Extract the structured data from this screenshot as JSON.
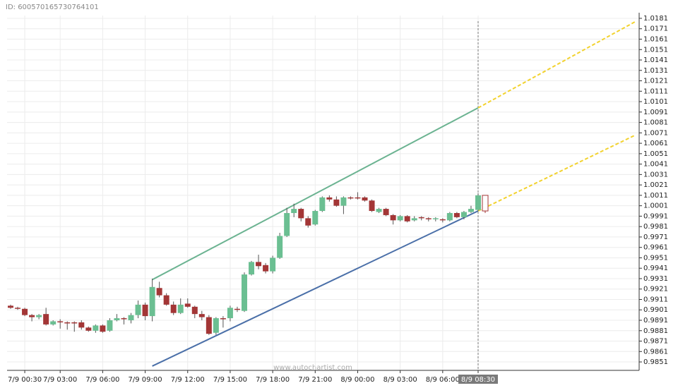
{
  "id_label": "ID: 600570165730764101",
  "watermark": "www.autochartist.com",
  "chart_data": {
    "type": "candlestick",
    "categories": [
      null,
      null,
      "7/9 00:30",
      null,
      null,
      null,
      null,
      "7/9 03:00",
      null,
      null,
      null,
      null,
      null,
      "7/9 06:00",
      null,
      null,
      null,
      null,
      null,
      "7/9 09:00",
      null,
      null,
      null,
      null,
      null,
      "7/9 12:00",
      null,
      null,
      null,
      null,
      null,
      "7/9 15:00",
      null,
      null,
      null,
      null,
      null,
      "7/9 18:00",
      null,
      null,
      null,
      null,
      null,
      "7/9 21:00",
      null,
      null,
      null,
      null,
      null,
      "8/9 00:00",
      null,
      null,
      null,
      null,
      null,
      "8/9 03:00",
      null,
      null,
      null,
      null,
      null,
      "8/9 06:00",
      null,
      null,
      null,
      null,
      "8/9 08:30",
      null
    ],
    "open": [
      0.9905,
      0.9903,
      0.9902,
      0.9896,
      0.9894,
      0.9897,
      0.9887,
      0.989,
      0.9889,
      0.9889,
      0.9889,
      0.9884,
      0.9881,
      0.9886,
      0.9881,
      0.9891,
      0.9893,
      0.9891,
      0.9896,
      0.9906,
      0.9895,
      0.9922,
      0.9915,
      0.9906,
      0.9898,
      0.9907,
      0.9904,
      0.9897,
      0.9894,
      0.9879,
      0.9893,
      0.9893,
      0.9902,
      0.99,
      0.9935,
      0.9947,
      0.9944,
      0.9938,
      0.9951,
      0.9972,
      0.9994,
      0.9998,
      0.9989,
      0.9983,
      0.9996,
      1.0009,
      1.0007,
      1.0001,
      1.0009,
      1.0009,
      1.0009,
      1.0006,
      0.9995,
      0.9998,
      0.9992,
      0.9987,
      0.9991,
      0.9987,
      0.999,
      0.9989,
      0.9988,
      0.9988,
      0.9987,
      0.9994,
      0.999,
      0.9995,
      0.9997,
      1.0011
    ],
    "high": [
      0.9906,
      0.9904,
      0.9903,
      0.9897,
      0.9897,
      0.9903,
      0.9891,
      0.9892,
      0.989,
      0.989,
      0.9891,
      0.9885,
      0.9887,
      0.9887,
      0.9893,
      0.9897,
      0.9894,
      0.9898,
      0.991,
      0.9908,
      0.9931,
      0.9928,
      0.9917,
      0.9909,
      0.9912,
      0.9912,
      0.9905,
      0.99,
      0.9896,
      0.9894,
      0.9895,
      0.9905,
      0.9904,
      0.9937,
      0.9948,
      0.9954,
      0.9946,
      0.9953,
      0.9975,
      0.9999,
      1.0003,
      0.9999,
      0.9991,
      0.9997,
      1.001,
      1.0011,
      1.001,
      1.001,
      1.001,
      1.0014,
      1.001,
      1.0007,
      0.9999,
      0.9999,
      0.9993,
      0.9992,
      0.9992,
      0.9991,
      0.9991,
      0.999,
      0.999,
      0.9989,
      0.9995,
      0.9995,
      0.9996,
      1.0001,
      1.0013,
      1.0011
    ],
    "low": [
      0.9902,
      0.9901,
      0.9895,
      0.989,
      0.9892,
      0.9886,
      0.9886,
      0.9883,
      0.9882,
      0.988,
      0.9882,
      0.988,
      0.9879,
      0.9879,
      0.988,
      0.989,
      0.9887,
      0.9888,
      0.9893,
      0.9891,
      0.989,
      0.9913,
      0.9905,
      0.9896,
      0.9897,
      0.9903,
      0.9893,
      0.9891,
      0.9877,
      0.9877,
      0.9884,
      0.989,
      0.9899,
      0.9899,
      0.9934,
      0.994,
      0.9936,
      0.9936,
      0.995,
      0.9971,
      0.999,
      0.9986,
      0.998,
      0.9982,
      0.9995,
      1.0005,
      1.0,
      0.9993,
      1.0007,
      1.0007,
      1.0005,
      0.9995,
      0.9994,
      0.9991,
      0.9983,
      0.9986,
      0.9985,
      0.9986,
      0.9987,
      0.9986,
      0.9986,
      0.9985,
      0.9986,
      0.9989,
      0.9988,
      0.9994,
      0.9996,
      0.9994
    ],
    "close": [
      0.9903,
      0.9902,
      0.9896,
      0.9894,
      0.9896,
      0.9887,
      0.989,
      0.9889,
      0.9888,
      0.9888,
      0.9884,
      0.9881,
      0.9886,
      0.988,
      0.9891,
      0.9893,
      0.9892,
      0.9896,
      0.9906,
      0.9895,
      0.9923,
      0.9915,
      0.9906,
      0.9898,
      0.9906,
      0.9904,
      0.9897,
      0.9894,
      0.9878,
      0.9893,
      0.9892,
      0.9903,
      0.9901,
      0.9935,
      0.9947,
      0.9943,
      0.9938,
      0.9951,
      0.9972,
      0.9994,
      0.9998,
      0.9989,
      0.9982,
      0.9996,
      1.0009,
      1.0007,
      1.0001,
      1.0009,
      1.0008,
      1.0008,
      1.0006,
      0.9996,
      0.9998,
      0.9992,
      0.9987,
      0.9991,
      0.9986,
      0.9989,
      0.9989,
      0.9988,
      0.9989,
      0.9987,
      0.9994,
      0.999,
      0.9995,
      0.9998,
      1.0011,
      0.9996
    ],
    "up_color": "#6bbf92",
    "down_color": "#a33636",
    "current_candle_hollow": true,
    "channel": {
      "upper": [
        0.993,
        1.0095
      ],
      "lower": [
        0.9847,
        0.9996
      ],
      "upper_projection": [
        1.0095,
        1.0178
      ],
      "lower_projection": [
        0.9996,
        1.0069
      ],
      "upper_color": "#6bb391",
      "lower_color": "#4a6fa8",
      "projection_color": "#f2d22e"
    },
    "ylim": [
      0.98429,
      1.01837
    ],
    "yticks": [
      0.9851,
      0.9861,
      0.9871,
      0.9881,
      0.9891,
      0.9901,
      0.9911,
      0.9921,
      0.9931,
      0.9941,
      0.9951,
      0.9961,
      0.9971,
      0.9981,
      0.9991,
      1.0001,
      1.0011,
      1.0021,
      1.0031,
      1.0041,
      1.0051,
      1.0061,
      1.0071,
      1.0081,
      1.0091,
      1.0101,
      1.0111,
      1.0121,
      1.0131,
      1.0141,
      1.0151,
      1.0161,
      1.0171,
      1.0181
    ],
    "grid": true
  }
}
